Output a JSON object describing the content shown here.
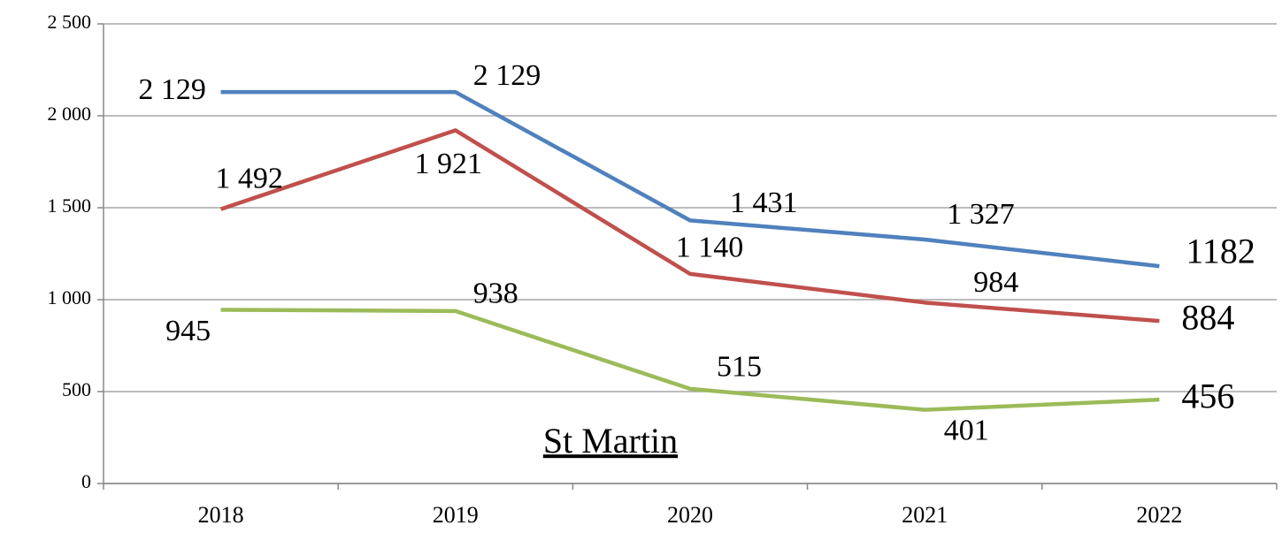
{
  "chart_data": {
    "type": "line",
    "title": "St Martin",
    "categories": [
      "2018",
      "2019",
      "2020",
      "2021",
      "2022"
    ],
    "series": [
      {
        "color": "#4f81bd",
        "values": [
          2129,
          2129,
          1431,
          1327,
          1182
        ],
        "value_labels": [
          "2 129",
          "2 129",
          "1 431",
          "1 327",
          "1182"
        ]
      },
      {
        "color": "#c0504d",
        "values": [
          1492,
          1921,
          1140,
          984,
          884
        ],
        "value_labels": [
          "1 492",
          "1 921",
          "1 140",
          "984",
          "884"
        ]
      },
      {
        "color": "#9bbb59",
        "values": [
          945,
          938,
          515,
          401,
          456
        ],
        "value_labels": [
          "945",
          "938",
          "515",
          "401",
          "456"
        ]
      }
    ],
    "ylim": [
      0,
      2500
    ],
    "yticks": [
      0,
      500,
      {
        "value": 1000,
        "label": "1 000"
      },
      {
        "value": 1500,
        "label": "1 500"
      },
      {
        "value": 2000,
        "label": "2 000"
      },
      {
        "value": 2500,
        "label": "2 500"
      }
    ],
    "grid": true
  }
}
